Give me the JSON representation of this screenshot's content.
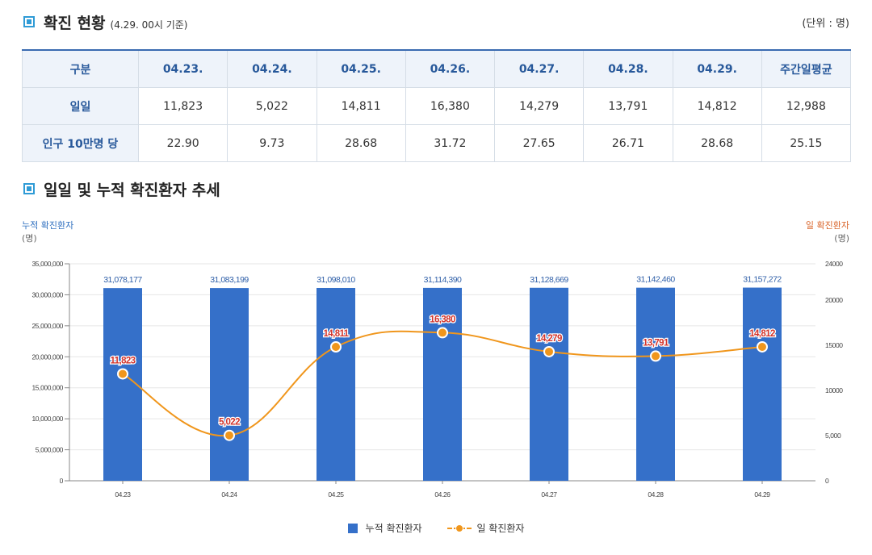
{
  "section1": {
    "title": "확진 현황",
    "subtitle": "(4.29. 00시 기준)",
    "unit": "(단위 : 명)"
  },
  "table": {
    "headers": [
      "구분",
      "04.23.",
      "04.24.",
      "04.25.",
      "04.26.",
      "04.27.",
      "04.28.",
      "04.29.",
      "주간일평균"
    ],
    "rows": [
      {
        "label": "일일",
        "values": [
          "11,823",
          "5,022",
          "14,811",
          "16,380",
          "14,279",
          "13,791",
          "14,812",
          "12,988"
        ]
      },
      {
        "label": "인구 10만명 당",
        "values": [
          "22.90",
          "9.73",
          "28.68",
          "31.72",
          "27.65",
          "26.71",
          "28.68",
          "25.15"
        ]
      }
    ]
  },
  "section2": {
    "title": "일일 및 누적 확진환자 추세"
  },
  "axis": {
    "left_title": "누적 확진환자",
    "left_unit": "(명)",
    "right_title": "일 확진환자",
    "right_unit": "(명)"
  },
  "legend": {
    "bar": "누적 확진환자",
    "line": "일 확진환자"
  },
  "colors": {
    "bar": "#3570c9",
    "line": "#f0961c",
    "marker_label": "#d2342b",
    "bar_label": "#2f5fa8"
  },
  "chart_data": {
    "type": "bar",
    "categories": [
      "04.23",
      "04.24",
      "04.25",
      "04.26",
      "04.27",
      "04.28",
      "04.29"
    ],
    "series": [
      {
        "name": "누적 확진환자",
        "type": "bar",
        "axis": "left",
        "values": [
          31078177,
          31083199,
          31098010,
          31114390,
          31128669,
          31142460,
          31157272
        ],
        "labels": [
          "31,078,177",
          "31,083,199",
          "31,098,010",
          "31,114,390",
          "31,128,669",
          "31,142,460",
          "31,157,272"
        ]
      },
      {
        "name": "일 확진환자",
        "type": "line",
        "axis": "right",
        "values": [
          11823,
          5022,
          14811,
          16380,
          14279,
          13791,
          14812
        ],
        "labels": [
          "11,823",
          "5,022",
          "14,811",
          "16,380",
          "14,279",
          "13,791",
          "14,812"
        ]
      }
    ],
    "left_axis": {
      "min": 0,
      "max": 35000000,
      "ticks": [
        "0",
        "5,000,000",
        "10,000,000",
        "15,000,000",
        "20,000,000",
        "25,000,000",
        "30,000,000",
        "35,000,000"
      ]
    },
    "right_axis": {
      "min": 0,
      "max": 24000,
      "ticks": [
        "0",
        "5,000",
        "10000",
        "15000",
        "20000",
        "24000"
      ],
      "tick_values": [
        0,
        5000,
        10000,
        15000,
        20000,
        24000
      ]
    },
    "grid": true,
    "legend_position": "bottom-center"
  }
}
